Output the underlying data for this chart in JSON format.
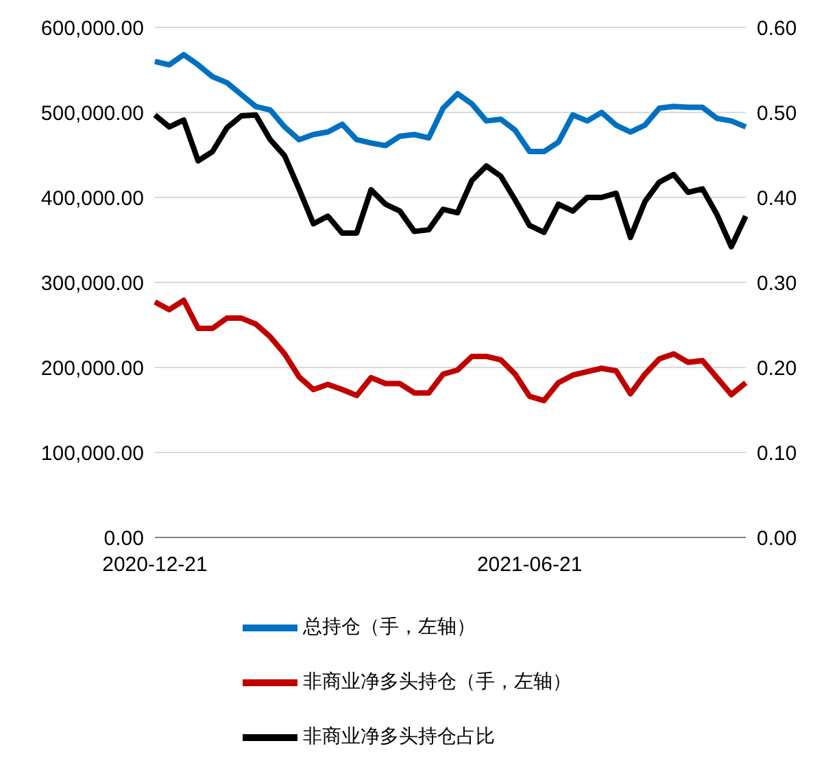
{
  "chart_data": {
    "type": "line",
    "categories": [
      "2020-12-21",
      null,
      null,
      null,
      null,
      null,
      null,
      null,
      null,
      null,
      null,
      null,
      null,
      null,
      null,
      null,
      null,
      null,
      null,
      null,
      null,
      null,
      null,
      null,
      null,
      null,
      "2021-06-21",
      null,
      null,
      null,
      null,
      null,
      null,
      null,
      null,
      null,
      null,
      null,
      null,
      null,
      null,
      null
    ],
    "series": [
      {
        "name": "总持仓（手，左轴）",
        "color": "#0070c0",
        "values": [
          560000,
          556000,
          568000,
          556000,
          542000,
          535000,
          521000,
          507000,
          503000,
          483000,
          468000,
          474000,
          477000,
          486000,
          468000,
          464000,
          461000,
          472000,
          474000,
          470000,
          505000,
          522000,
          510000,
          490000,
          492000,
          479000,
          454000,
          454000,
          465000,
          497000,
          490000,
          500000,
          485000,
          477000,
          485000,
          505000,
          507000,
          506000,
          506000,
          493000,
          490000,
          483000
        ]
      },
      {
        "name": "非商业净多头持仓（手，左轴）",
        "color": "#c00000",
        "values": [
          277000,
          268000,
          279000,
          246000,
          246000,
          258000,
          258000,
          251000,
          236000,
          216000,
          189000,
          174000,
          180000,
          174000,
          167000,
          188000,
          181000,
          181000,
          170000,
          170000,
          192000,
          197000,
          213000,
          213000,
          209000,
          192000,
          166000,
          161000,
          182000,
          191000,
          195000,
          199000,
          196000,
          169000,
          192000,
          210000,
          216000,
          206000,
          208000,
          188000,
          168000,
          182000
        ]
      },
      {
        "name": "非商业净多头持仓占比",
        "color": "#000000",
        "axis": "y2",
        "values": [
          0.497,
          0.483,
          0.491,
          0.443,
          0.454,
          0.482,
          0.496,
          0.497,
          0.468,
          0.449,
          0.41,
          0.369,
          0.378,
          0.358,
          0.358,
          0.409,
          0.392,
          0.384,
          0.36,
          0.362,
          0.386,
          0.382,
          0.42,
          0.437,
          0.425,
          0.397,
          0.367,
          0.359,
          0.392,
          0.384,
          0.4,
          0.4,
          0.405,
          0.353,
          0.395,
          0.418,
          0.427,
          0.406,
          0.41,
          0.38,
          0.342,
          0.378
        ]
      }
    ],
    "ylim": [
      0,
      600000
    ],
    "yticks": [
      {
        "value": 0,
        "label": "0.00"
      },
      {
        "value": 100000,
        "label": "100,000.00"
      },
      {
        "value": 200000,
        "label": "200,000.00"
      },
      {
        "value": 300000,
        "label": "300,000.00"
      },
      {
        "value": 400000,
        "label": "400,000.00"
      },
      {
        "value": 500000,
        "label": "500,000.00"
      },
      {
        "value": 600000,
        "label": "600,000.00"
      }
    ],
    "y2lim": [
      0,
      0.6
    ],
    "y2ticks": [
      {
        "value": 0,
        "label": "0.00"
      },
      {
        "value": 0.1,
        "label": "0.10"
      },
      {
        "value": 0.2,
        "label": "0.20"
      },
      {
        "value": 0.3,
        "label": "0.30"
      },
      {
        "value": 0.4,
        "label": "0.40"
      },
      {
        "value": 0.5,
        "label": "0.50"
      },
      {
        "value": 0.6,
        "label": "0.60"
      }
    ],
    "grid": "y",
    "legend": "bottom",
    "marker": "none",
    "line_style": "solid"
  }
}
